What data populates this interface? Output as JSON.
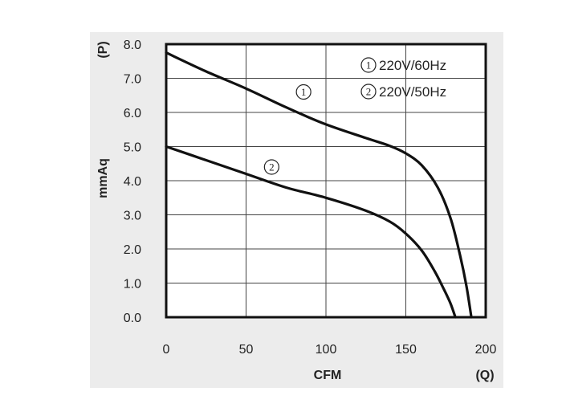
{
  "chart_data": {
    "type": "line",
    "title": "",
    "xlabel": "CFM",
    "xlabel_unit": "(Q)",
    "ylabel": "mmAq",
    "ylabel_unit": "(P)",
    "xlim": [
      0,
      200
    ],
    "ylim": [
      0,
      8
    ],
    "x_ticks": [
      "0",
      "50",
      "100",
      "150",
      "200"
    ],
    "y_ticks": [
      "0.0",
      "1.0",
      "2.0",
      "3.0",
      "4.0",
      "5.0",
      "6.0",
      "7.0",
      "8.0"
    ],
    "grid": true,
    "legend_position": "top-right",
    "series": [
      {
        "name": "220V/60Hz",
        "marker": "1",
        "x": [
          0,
          25,
          50,
          75,
          100,
          125,
          140,
          150,
          160,
          170,
          178,
          184,
          188,
          191
        ],
        "y": [
          7.75,
          7.2,
          6.7,
          6.15,
          5.65,
          5.25,
          5.02,
          4.8,
          4.45,
          3.8,
          2.9,
          1.8,
          0.9,
          0.0
        ]
      },
      {
        "name": "220V/50Hz",
        "marker": "2",
        "x": [
          0,
          25,
          50,
          75,
          100,
          125,
          140,
          150,
          160,
          168,
          174,
          178,
          181
        ],
        "y": [
          5.0,
          4.6,
          4.2,
          3.8,
          3.5,
          3.12,
          2.8,
          2.45,
          1.95,
          1.35,
          0.8,
          0.4,
          0.0
        ]
      }
    ],
    "curve_labels": [
      {
        "marker": "1",
        "x": 86,
        "y": 6.6
      },
      {
        "marker": "2",
        "x": 66,
        "y": 4.4
      }
    ]
  }
}
